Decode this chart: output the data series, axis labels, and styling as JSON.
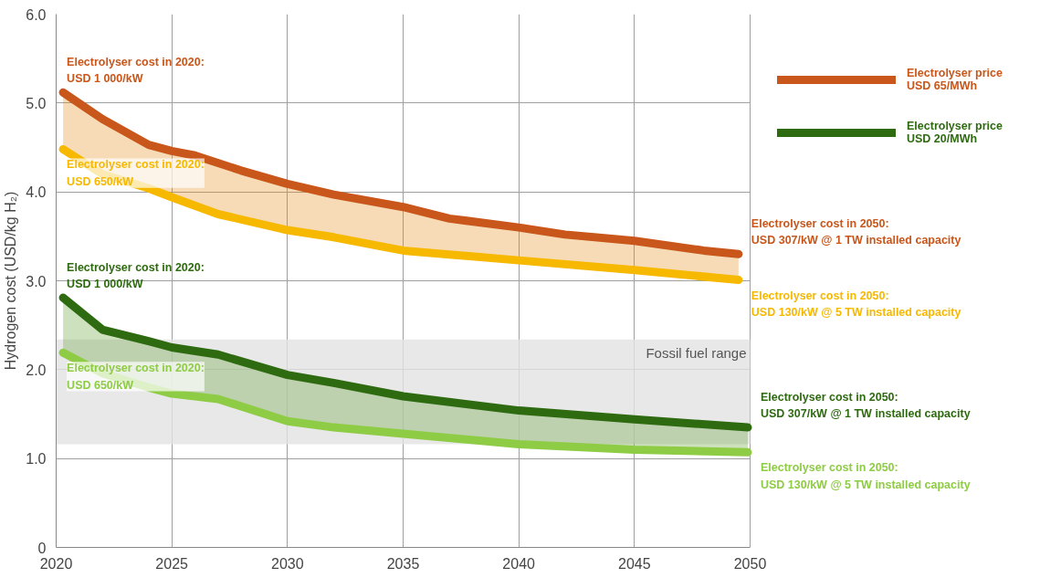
{
  "chart_data": {
    "type": "line",
    "ylabel": "Hydrogen cost (USD/kg H₂)",
    "xlim": [
      2020,
      2050
    ],
    "xticks": [
      2020,
      2025,
      2030,
      2035,
      2040,
      2045,
      2050
    ],
    "ylim": [
      0,
      6
    ],
    "yticks": [
      0,
      {
        "value": 1,
        "label": "1.0"
      },
      {
        "value": 2,
        "label": "2.0"
      },
      {
        "value": 3,
        "label": "3.0"
      },
      {
        "value": 4,
        "label": "4.0"
      },
      {
        "value": 5,
        "label": "5.0"
      },
      {
        "value": 6,
        "label": "6.0"
      }
    ],
    "grid": true,
    "legend": "top right",
    "line_style": "solid",
    "bands": [
      {
        "axis": "y",
        "from": 1.16,
        "to": 2.34,
        "label": "Fossil fuel range",
        "color": "#e2e2e2"
      }
    ],
    "series": [
      {
        "name": "Electrolyser price\nUSD 65/MWh",
        "color": "#c9561a",
        "x": [
          2020.3,
          2022,
          2024,
          2025,
          2026,
          2028,
          2030,
          2032,
          2035,
          2037,
          2040,
          2042,
          2045,
          2048,
          2049.5
        ],
        "values": [
          5.12,
          4.82,
          4.53,
          4.46,
          4.41,
          4.24,
          4.09,
          3.97,
          3.83,
          3.7,
          3.6,
          3.52,
          3.45,
          3.34,
          3.3
        ],
        "lower": [
          4.48,
          4.2,
          4.04,
          3.94,
          3.85,
          3.68,
          3.57,
          3.49,
          3.34,
          3.3,
          3.23,
          3.19,
          3.12,
          3.06,
          3.01
        ],
        "upper": [
          5.12,
          4.82,
          4.53,
          4.46,
          4.41,
          4.24,
          4.09,
          3.97,
          3.83,
          3.7,
          3.6,
          3.52,
          3.45,
          3.34,
          3.3
        ]
      },
      {
        "color": "#f7b800",
        "x": [
          2020.3,
          2022,
          2024,
          2025,
          2027,
          2030,
          2032,
          2035,
          2040,
          2045,
          2049.5
        ],
        "values": [
          4.48,
          4.2,
          4.04,
          3.94,
          3.75,
          3.57,
          3.49,
          3.34,
          3.23,
          3.12,
          3.01
        ]
      },
      {
        "name": "Electrolyser price\nUSD 20/MWh",
        "color": "#2e6b10",
        "x": [
          2020.3,
          2022,
          2024,
          2025,
          2027,
          2030,
          2032,
          2035,
          2040,
          2045,
          2049.9
        ],
        "values": [
          2.81,
          2.45,
          2.32,
          2.25,
          2.17,
          1.94,
          1.85,
          1.7,
          1.54,
          1.44,
          1.35
        ],
        "lower": [
          2.19,
          1.96,
          1.8,
          1.73,
          1.67,
          1.42,
          1.35,
          1.28,
          1.16,
          1.1,
          1.07
        ],
        "upper": [
          2.81,
          2.45,
          2.32,
          2.25,
          2.17,
          1.94,
          1.85,
          1.7,
          1.54,
          1.44,
          1.35
        ]
      },
      {
        "color": "#8fcc45",
        "x": [
          2020.3,
          2022,
          2024,
          2025,
          2027,
          2030,
          2032,
          2035,
          2040,
          2045,
          2049.9
        ],
        "values": [
          2.19,
          1.96,
          1.8,
          1.73,
          1.67,
          1.42,
          1.35,
          1.28,
          1.16,
          1.1,
          1.07
        ]
      }
    ],
    "annotations": [
      {
        "text": "Electrolyser cost in 2020:\nUSD 1 000/kW",
        "x": 2020.3,
        "y": 5.12
      },
      {
        "text": "Electrolyser cost in 2020:\nUSD 650/kW",
        "x": 2020.3,
        "y": 4.48
      },
      {
        "text": "Electrolyser cost in 2020:\nUSD 1 000/kW",
        "x": 2020.3,
        "y": 2.81
      },
      {
        "text": "Electrolyser cost in 2020:\nUSD 650/kW",
        "x": 2020.3,
        "y": 2.19
      },
      {
        "text": "Electrolyser cost in 2050:\nUSD 307/kW @ 1 TW installed capacity",
        "x": 2049.5,
        "y": 3.3
      },
      {
        "text": "Electrolyser cost in 2050:\nUSD 130/kW @ 5 TW installed capacity",
        "x": 2049.5,
        "y": 3.01
      },
      {
        "text": "Electrolyser cost in 2050:\nUSD 307/kW @ 1 TW installed capacity",
        "x": 2049.9,
        "y": 1.35
      },
      {
        "text": "Electrolyser cost in 2050:\nUSD 130/kW @ 5 TW installed capacity",
        "x": 2049.9,
        "y": 1.07
      }
    ]
  }
}
